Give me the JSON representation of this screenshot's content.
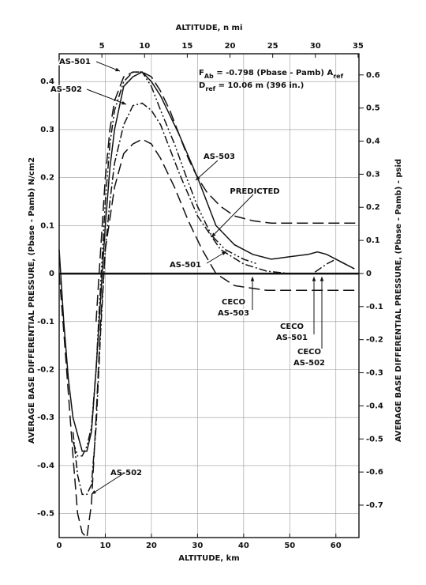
{
  "chart_data": {
    "type": "line",
    "xlabel": "ALTITUDE, km",
    "x2label": "ALTITUDE, n mi",
    "ylabel": "AVERAGE BASE DIFFERENTIAL PRESSURE, (Pbase - Pamb) N/cm2",
    "y2label": "AVERAGE BASE DIFFERENTIAL PRESSURE, (Pbase - Pamb) - psid",
    "formula": [
      [
        "F",
        "Ab",
        " = -0.798 (Pbase - Pamb) A",
        "ref"
      ],
      [
        "D",
        "ref",
        " = 10.06 m (396 in.)"
      ]
    ],
    "xlim": [
      0,
      65
    ],
    "xticks": [
      0,
      10,
      20,
      30,
      40,
      50,
      60
    ],
    "x2lim": [
      0,
      35.1
    ],
    "x2ticks": [
      5,
      10,
      15,
      20,
      25,
      30,
      35
    ],
    "ylim": [
      -0.55,
      0.458
    ],
    "yticks": [
      -0.5,
      -0.4,
      -0.3,
      -0.2,
      -0.1,
      0,
      0.1,
      0.2,
      0.3,
      0.4
    ],
    "y2lim": [
      -0.798,
      0.664
    ],
    "y2ticks": [
      -0.7,
      -0.6,
      -0.5,
      -0.4,
      -0.3,
      -0.2,
      -0.1,
      0,
      0.1,
      0.2,
      0.3,
      0.4,
      0.5,
      0.6
    ],
    "grid": true,
    "series": [
      {
        "name": "AS-501",
        "color": "#111111",
        "dash": "solid",
        "x": [
          0,
          1,
          2,
          3,
          5,
          6,
          7,
          8,
          9,
          10,
          11,
          12,
          14,
          16,
          18,
          20,
          22,
          26,
          30,
          34,
          38,
          42,
          46,
          50,
          54,
          56,
          58,
          62,
          64
        ],
        "values": [
          0.05,
          -0.1,
          -0.22,
          -0.3,
          -0.37,
          -0.37,
          -0.33,
          -0.2,
          -0.05,
          0.1,
          0.22,
          0.3,
          0.39,
          0.41,
          0.42,
          0.4,
          0.37,
          0.29,
          0.2,
          0.1,
          0.06,
          0.04,
          0.03,
          0.035,
          0.04,
          0.045,
          0.04,
          0.02,
          0.01
        ]
      },
      {
        "name": "AS-502",
        "color": "#111111",
        "dash": "dashdot",
        "x": [
          3,
          4,
          5,
          6,
          7,
          8,
          9,
          10,
          11,
          12,
          14,
          16,
          18,
          20,
          22,
          26,
          30,
          35,
          40,
          45,
          50,
          55,
          58,
          60,
          64
        ],
        "values": [
          -0.33,
          -0.42,
          -0.46,
          -0.46,
          -0.44,
          -0.32,
          -0.12,
          0.05,
          0.15,
          0.23,
          0.31,
          0.35,
          0.355,
          0.34,
          0.31,
          0.21,
          0.12,
          0.05,
          0.02,
          0.005,
          0,
          0,
          0.02,
          0.03,
          0.01
        ]
      },
      {
        "name": "AS-503",
        "color": "#111111",
        "dash": "dashdotdot",
        "x": [
          3,
          4,
          5,
          6,
          7,
          8,
          9,
          10,
          11,
          12,
          14,
          16,
          18,
          20,
          22,
          25,
          28,
          30,
          33,
          36,
          40,
          43
        ],
        "values": [
          -0.35,
          -0.38,
          -0.38,
          -0.36,
          -0.32,
          -0.2,
          -0.02,
          0.15,
          0.27,
          0.34,
          0.4,
          0.42,
          0.42,
          0.39,
          0.34,
          0.27,
          0.19,
          0.14,
          0.08,
          0.05,
          0.03,
          0.02
        ]
      },
      {
        "name": "PREDICTED",
        "color": "#111111",
        "dash": "longdash",
        "x": [
          0,
          1,
          2,
          3,
          4,
          5,
          6,
          7,
          8,
          9,
          10,
          12,
          14,
          16,
          18,
          20,
          22,
          25,
          28,
          31,
          34,
          38,
          45,
          55,
          65
        ],
        "values": [
          0,
          -0.12,
          -0.25,
          -0.38,
          -0.5,
          -0.54,
          -0.55,
          -0.48,
          -0.3,
          -0.1,
          0.05,
          0.18,
          0.25,
          0.27,
          0.28,
          0.27,
          0.24,
          0.18,
          0.11,
          0.05,
          0,
          -0.025,
          -0.035,
          -0.035,
          -0.035
        ]
      },
      {
        "color": "#111111",
        "dash": "longdash",
        "x": [
          8,
          9,
          10,
          11,
          12,
          14,
          16,
          18,
          20,
          22,
          24,
          26,
          28,
          30,
          32,
          35,
          38,
          42,
          46,
          50,
          55,
          65
        ],
        "values": [
          -0.1,
          0.05,
          0.2,
          0.3,
          0.36,
          0.41,
          0.42,
          0.42,
          0.41,
          0.38,
          0.34,
          0.29,
          0.24,
          0.2,
          0.17,
          0.14,
          0.12,
          0.11,
          0.105,
          0.105,
          0.105,
          0.105
        ]
      }
    ],
    "annotations": [
      [
        "AS-501"
      ],
      [
        "AS-502"
      ],
      [
        "AS-503"
      ],
      [
        "PREDICTED"
      ],
      [
        "AS-501"
      ],
      [
        "AS-502"
      ],
      [
        "CECO",
        "AS-503"
      ],
      [
        "CECO",
        "AS-501"
      ],
      [
        "CECO",
        "AS-502"
      ]
    ]
  }
}
